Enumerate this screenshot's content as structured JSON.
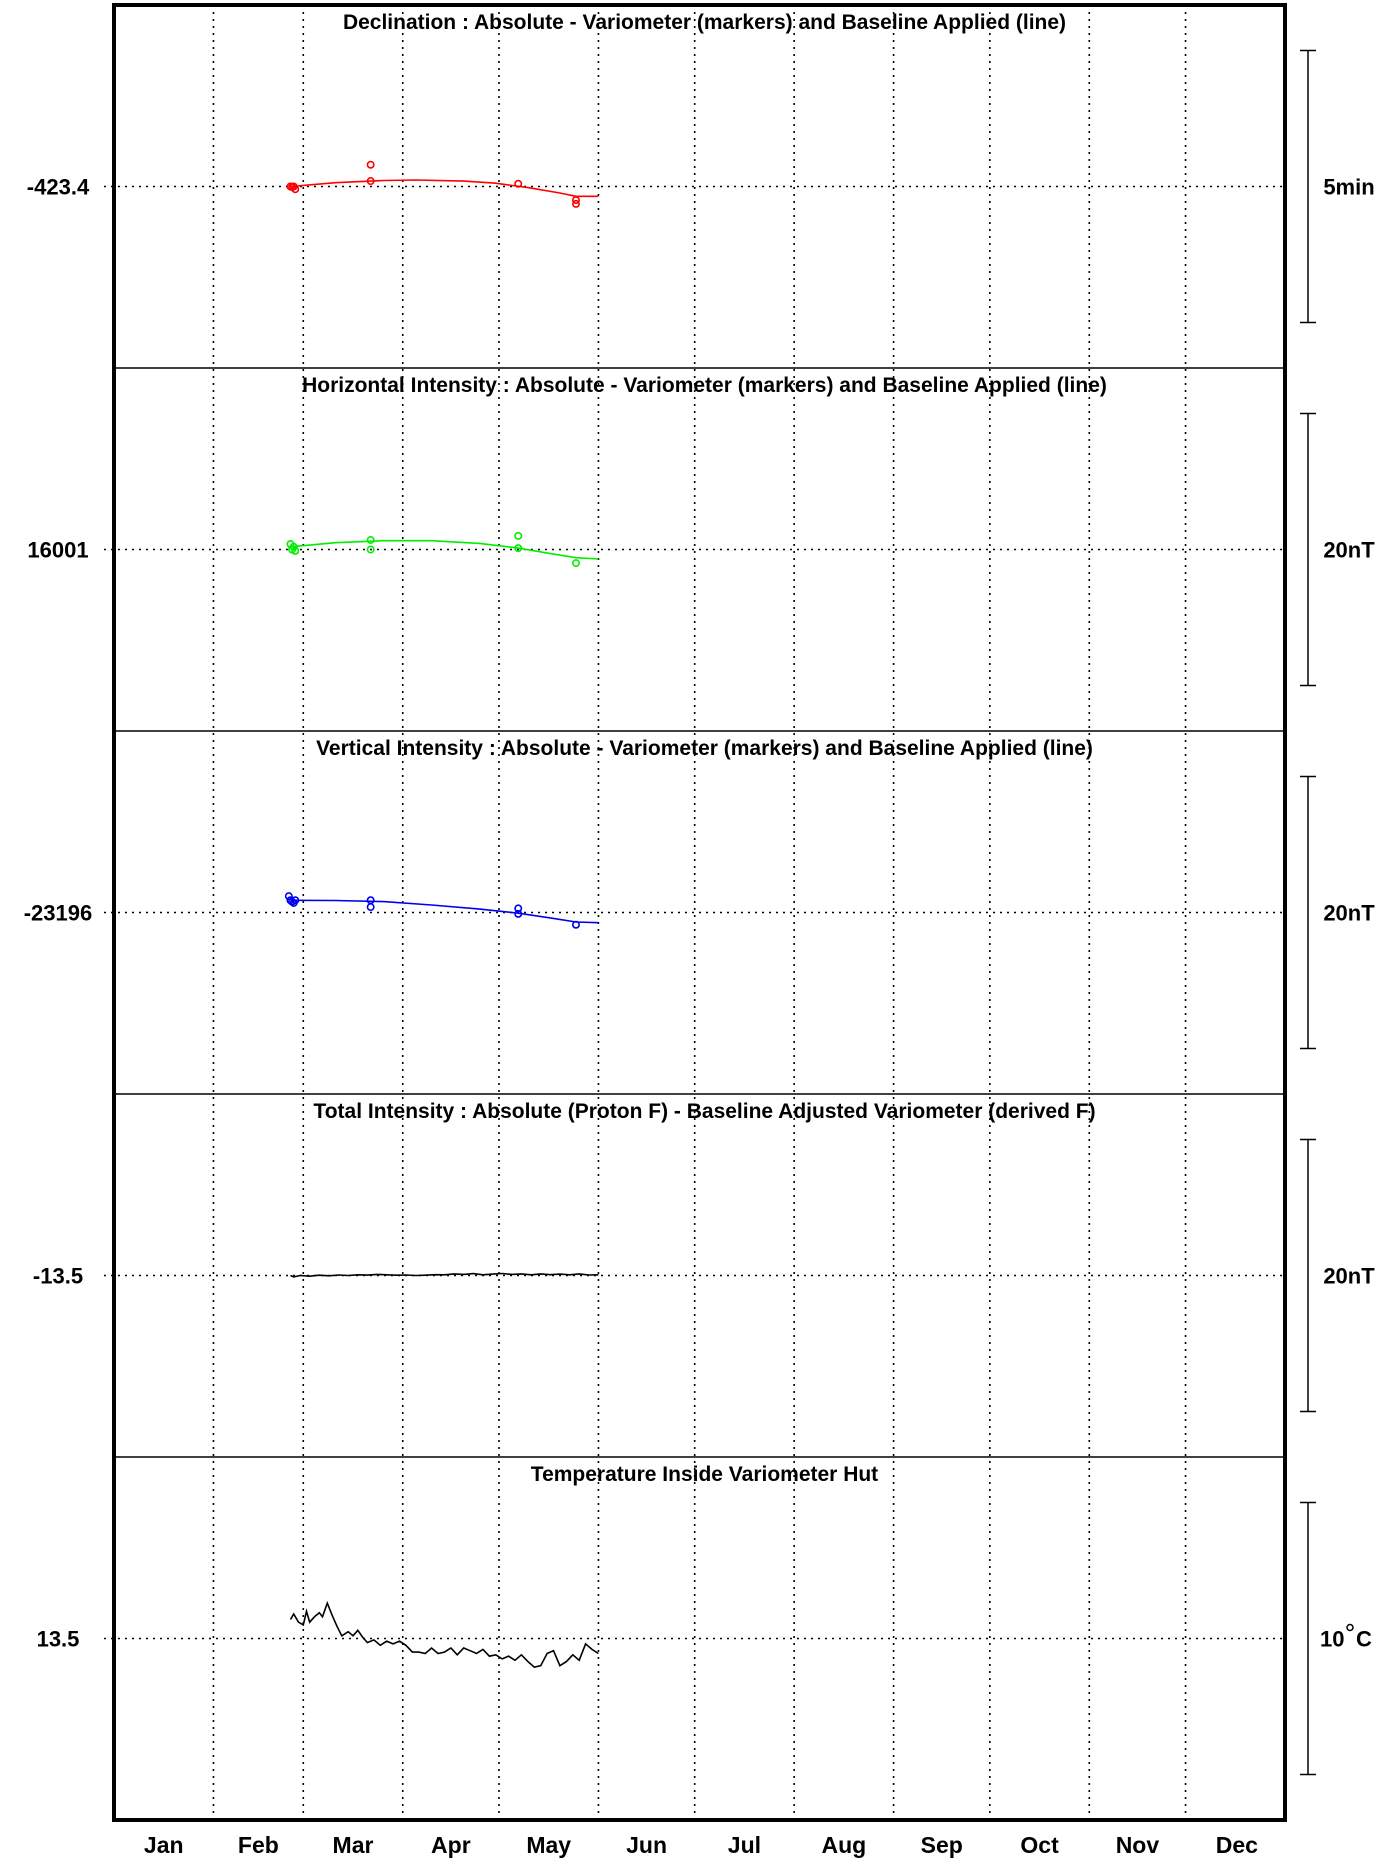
{
  "chart_data": {
    "type": "line",
    "x_axis": {
      "unit": "day-of-year",
      "xlim": [
        1,
        366
      ],
      "month_labels": [
        "Jan",
        "Feb",
        "Mar",
        "Apr",
        "May",
        "Jun",
        "Jul",
        "Aug",
        "Sep",
        "Oct",
        "Nov",
        "Dec"
      ],
      "month_starts": [
        1,
        32,
        60,
        91,
        121,
        152,
        182,
        213,
        244,
        274,
        305,
        335
      ]
    },
    "grid": true,
    "panels": [
      {
        "title": "Declination : Absolute - Variometer (markers) and Baseline Applied (line)",
        "center_label": "-423.4",
        "center_value": -423.4,
        "scale_label": "5min",
        "scale_value": 5,
        "color": "#ff0000",
        "markers": [
          {
            "x": 56,
            "y": -423.4
          },
          {
            "x": 56.5,
            "y": -423.41
          },
          {
            "x": 57,
            "y": -423.4
          },
          {
            "x": 57.5,
            "y": -423.45
          },
          {
            "x": 81,
            "y": -423.0
          },
          {
            "x": 81,
            "y": -423.3
          },
          {
            "x": 127,
            "y": -423.35
          },
          {
            "x": 145,
            "y": -423.65
          },
          {
            "x": 145,
            "y": -423.72
          }
        ],
        "baseline": [
          {
            "x": 56,
            "y": -423.4
          },
          {
            "x": 70,
            "y": -423.33
          },
          {
            "x": 85,
            "y": -423.29
          },
          {
            "x": 95,
            "y": -423.28
          },
          {
            "x": 110,
            "y": -423.3
          },
          {
            "x": 120,
            "y": -423.34
          },
          {
            "x": 130,
            "y": -423.42
          },
          {
            "x": 140,
            "y": -423.52
          },
          {
            "x": 145,
            "y": -423.58
          },
          {
            "x": 152,
            "y": -423.58
          }
        ]
      },
      {
        "title": "Horizontal Intensity : Absolute - Variometer (markers) and Baseline Applied (line)",
        "center_label": "16001",
        "center_value": 16001,
        "scale_label": "20nT",
        "scale_value": 20,
        "color": "#00ee00",
        "markers": [
          {
            "x": 56,
            "y": 16001.4
          },
          {
            "x": 56.5,
            "y": 16001.0
          },
          {
            "x": 57,
            "y": 16001.2
          },
          {
            "x": 57.5,
            "y": 16000.9
          },
          {
            "x": 81,
            "y": 16001.7
          },
          {
            "x": 81,
            "y": 16001.0
          },
          {
            "x": 127,
            "y": 16002.0
          },
          {
            "x": 127,
            "y": 16001.1
          },
          {
            "x": 145,
            "y": 16000.0
          }
        ],
        "baseline": [
          {
            "x": 56,
            "y": 16001.2
          },
          {
            "x": 70,
            "y": 16001.5
          },
          {
            "x": 85,
            "y": 16001.65
          },
          {
            "x": 100,
            "y": 16001.65
          },
          {
            "x": 115,
            "y": 16001.45
          },
          {
            "x": 127,
            "y": 16001.1
          },
          {
            "x": 137,
            "y": 16000.7
          },
          {
            "x": 145,
            "y": 16000.4
          },
          {
            "x": 152,
            "y": 16000.3
          }
        ]
      },
      {
        "title": "Vertical Intensity : Absolute - Variometer (markers) and Baseline Applied (line)",
        "center_label": "-23196",
        "center_value": -23196,
        "scale_label": "20nT",
        "scale_value": 20,
        "color": "#0000ee",
        "markers": [
          {
            "x": 55.5,
            "y": -23194.8
          },
          {
            "x": 56,
            "y": -23195.1
          },
          {
            "x": 56.5,
            "y": -23195.2
          },
          {
            "x": 57,
            "y": -23195.3
          },
          {
            "x": 57.5,
            "y": -23195.1
          },
          {
            "x": 81,
            "y": -23195.1
          },
          {
            "x": 81,
            "y": -23195.6
          },
          {
            "x": 127,
            "y": -23195.7
          },
          {
            "x": 127,
            "y": -23196.1
          },
          {
            "x": 145,
            "y": -23196.9
          }
        ],
        "baseline": [
          {
            "x": 56,
            "y": -23195.1
          },
          {
            "x": 70,
            "y": -23195.12
          },
          {
            "x": 85,
            "y": -23195.2
          },
          {
            "x": 100,
            "y": -23195.45
          },
          {
            "x": 115,
            "y": -23195.75
          },
          {
            "x": 127,
            "y": -23196.05
          },
          {
            "x": 137,
            "y": -23196.4
          },
          {
            "x": 145,
            "y": -23196.7
          },
          {
            "x": 152,
            "y": -23196.75
          }
        ]
      },
      {
        "title": "Total Intensity : Absolute (Proton F) - Baseline Adjusted Variometer (derived F)",
        "center_label": "-13.5",
        "center_value": -13.5,
        "scale_label": "20nT",
        "scale_value": 20,
        "color": "#000000",
        "series": [
          {
            "x": 56,
            "y": -13.5
          },
          {
            "x": 57,
            "y": -13.6
          },
          {
            "x": 59,
            "y": -13.5
          },
          {
            "x": 62,
            "y": -13.55
          },
          {
            "x": 65,
            "y": -13.48
          },
          {
            "x": 68,
            "y": -13.52
          },
          {
            "x": 71,
            "y": -13.46
          },
          {
            "x": 74,
            "y": -13.5
          },
          {
            "x": 77,
            "y": -13.45
          },
          {
            "x": 80,
            "y": -13.47
          },
          {
            "x": 83,
            "y": -13.42
          },
          {
            "x": 86,
            "y": -13.45
          },
          {
            "x": 89,
            "y": -13.48
          },
          {
            "x": 92,
            "y": -13.46
          },
          {
            "x": 95,
            "y": -13.5
          },
          {
            "x": 98,
            "y": -13.48
          },
          {
            "x": 101,
            "y": -13.44
          },
          {
            "x": 104,
            "y": -13.45
          },
          {
            "x": 107,
            "y": -13.38
          },
          {
            "x": 110,
            "y": -13.42
          },
          {
            "x": 113,
            "y": -13.36
          },
          {
            "x": 116,
            "y": -13.45
          },
          {
            "x": 119,
            "y": -13.4
          },
          {
            "x": 122,
            "y": -13.35
          },
          {
            "x": 125,
            "y": -13.42
          },
          {
            "x": 128,
            "y": -13.38
          },
          {
            "x": 131,
            "y": -13.45
          },
          {
            "x": 134,
            "y": -13.38
          },
          {
            "x": 137,
            "y": -13.44
          },
          {
            "x": 140,
            "y": -13.4
          },
          {
            "x": 143,
            "y": -13.45
          },
          {
            "x": 146,
            "y": -13.38
          },
          {
            "x": 149,
            "y": -13.46
          },
          {
            "x": 152,
            "y": -13.45
          }
        ]
      },
      {
        "title": "Temperature Inside Variometer Hut",
        "center_label": "13.5",
        "center_value": 13.5,
        "scale_label": "10",
        "scale_unit": "C",
        "scale_value": 10,
        "color": "#000000",
        "series": [
          {
            "x": 56,
            "y": 14.2
          },
          {
            "x": 57,
            "y": 14.4
          },
          {
            "x": 58.5,
            "y": 14.1
          },
          {
            "x": 60,
            "y": 14.0
          },
          {
            "x": 61,
            "y": 14.5
          },
          {
            "x": 62,
            "y": 14.1
          },
          {
            "x": 63.5,
            "y": 14.3
          },
          {
            "x": 65,
            "y": 14.45
          },
          {
            "x": 66,
            "y": 14.3
          },
          {
            "x": 67.5,
            "y": 14.8
          },
          {
            "x": 69,
            "y": 14.35
          },
          {
            "x": 70.5,
            "y": 13.95
          },
          {
            "x": 72,
            "y": 13.6
          },
          {
            "x": 74,
            "y": 13.75
          },
          {
            "x": 75.5,
            "y": 13.6
          },
          {
            "x": 77,
            "y": 13.8
          },
          {
            "x": 78.5,
            "y": 13.55
          },
          {
            "x": 80,
            "y": 13.35
          },
          {
            "x": 82,
            "y": 13.45
          },
          {
            "x": 84,
            "y": 13.25
          },
          {
            "x": 86,
            "y": 13.4
          },
          {
            "x": 88,
            "y": 13.3
          },
          {
            "x": 90,
            "y": 13.4
          },
          {
            "x": 92,
            "y": 13.25
          },
          {
            "x": 94,
            "y": 13.0
          },
          {
            "x": 96,
            "y": 13.0
          },
          {
            "x": 98,
            "y": 12.95
          },
          {
            "x": 100,
            "y": 13.15
          },
          {
            "x": 102,
            "y": 12.95
          },
          {
            "x": 104,
            "y": 13.0
          },
          {
            "x": 106,
            "y": 13.15
          },
          {
            "x": 108,
            "y": 12.9
          },
          {
            "x": 110,
            "y": 13.15
          },
          {
            "x": 112,
            "y": 13.05
          },
          {
            "x": 114,
            "y": 12.95
          },
          {
            "x": 116,
            "y": 13.1
          },
          {
            "x": 118,
            "y": 12.85
          },
          {
            "x": 120,
            "y": 12.9
          },
          {
            "x": 122,
            "y": 12.75
          },
          {
            "x": 124,
            "y": 12.85
          },
          {
            "x": 126,
            "y": 12.7
          },
          {
            "x": 128,
            "y": 12.9
          },
          {
            "x": 130,
            "y": 12.65
          },
          {
            "x": 132,
            "y": 12.45
          },
          {
            "x": 134,
            "y": 12.5
          },
          {
            "x": 136,
            "y": 12.95
          },
          {
            "x": 138,
            "y": 13.05
          },
          {
            "x": 140,
            "y": 12.5
          },
          {
            "x": 142,
            "y": 12.65
          },
          {
            "x": 144,
            "y": 12.9
          },
          {
            "x": 146,
            "y": 12.7
          },
          {
            "x": 148,
            "y": 13.3
          },
          {
            "x": 150,
            "y": 13.1
          },
          {
            "x": 152,
            "y": 12.95
          }
        ]
      }
    ]
  }
}
